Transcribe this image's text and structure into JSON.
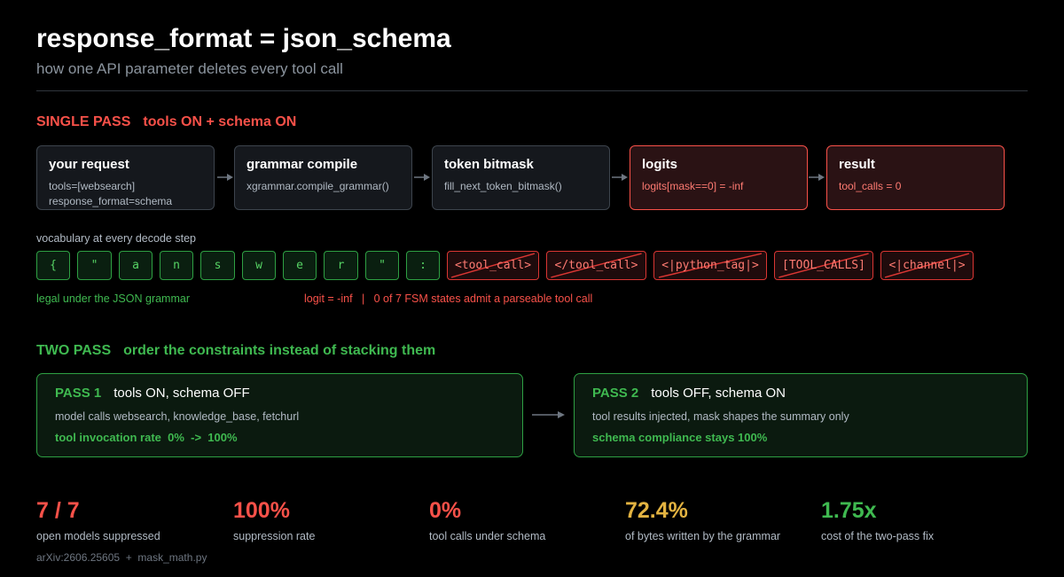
{
  "title": "response_format = json_schema",
  "subtitle": "how one API parameter deletes every tool call",
  "single_pass": {
    "label": "SINGLE PASS",
    "desc": "tools ON + schema ON",
    "boxes": [
      {
        "title": "your request",
        "lines": [
          "tools=[websearch]",
          "response_format=schema"
        ]
      },
      {
        "title": "grammar compile",
        "lines": [
          "xgrammar.compile_grammar()"
        ]
      },
      {
        "title": "token bitmask",
        "lines": [
          "fill_next_token_bitmask()"
        ]
      },
      {
        "title": "logits",
        "lines": [
          "logits[mask==0] = -inf"
        ]
      },
      {
        "title": "result",
        "lines": [
          "tool_calls = 0"
        ]
      }
    ]
  },
  "vocab": {
    "label": "vocabulary at every decode step",
    "legal_tokens": [
      "{",
      "\"",
      "a",
      "n",
      "s",
      "w",
      "e",
      "r",
      "\"",
      ":"
    ],
    "masked_tokens": [
      "<tool_call>",
      "</tool_call>",
      "<|python_tag|>",
      "[TOOL_CALLS]",
      "<|channel|>"
    ],
    "legal_note": "legal under the JSON grammar",
    "mask_note": "logit = -inf   |   0 of 7 FSM states admit a parseable tool call"
  },
  "two_pass": {
    "label": "TWO PASS",
    "desc": "order the constraints instead of stacking them",
    "passes": [
      {
        "name": "PASS 1",
        "title": "tools ON, schema OFF",
        "desc": "model calls websearch, knowledge_base, fetchurl",
        "metric": "tool invocation rate  0%  ->  100%"
      },
      {
        "name": "PASS 2",
        "title": "tools OFF, schema ON",
        "desc": "tool results injected, mask shapes the summary only",
        "metric": "schema compliance stays 100%"
      }
    ]
  },
  "stats": [
    {
      "value": "7 / 7",
      "label": "open models suppressed",
      "color": "#f85149"
    },
    {
      "value": "100%",
      "label": "suppression rate",
      "color": "#f85149"
    },
    {
      "value": "0%",
      "label": "tool calls under schema",
      "color": "#f85149"
    },
    {
      "value": "72.4%",
      "label": "of bytes written by the grammar",
      "color": "#e3b341"
    },
    {
      "value": "1.75x",
      "label": "cost of the two-pass fix",
      "color": "#3fb950"
    }
  ],
  "footer": "arXiv:2606.25605  +  mask_math.py"
}
